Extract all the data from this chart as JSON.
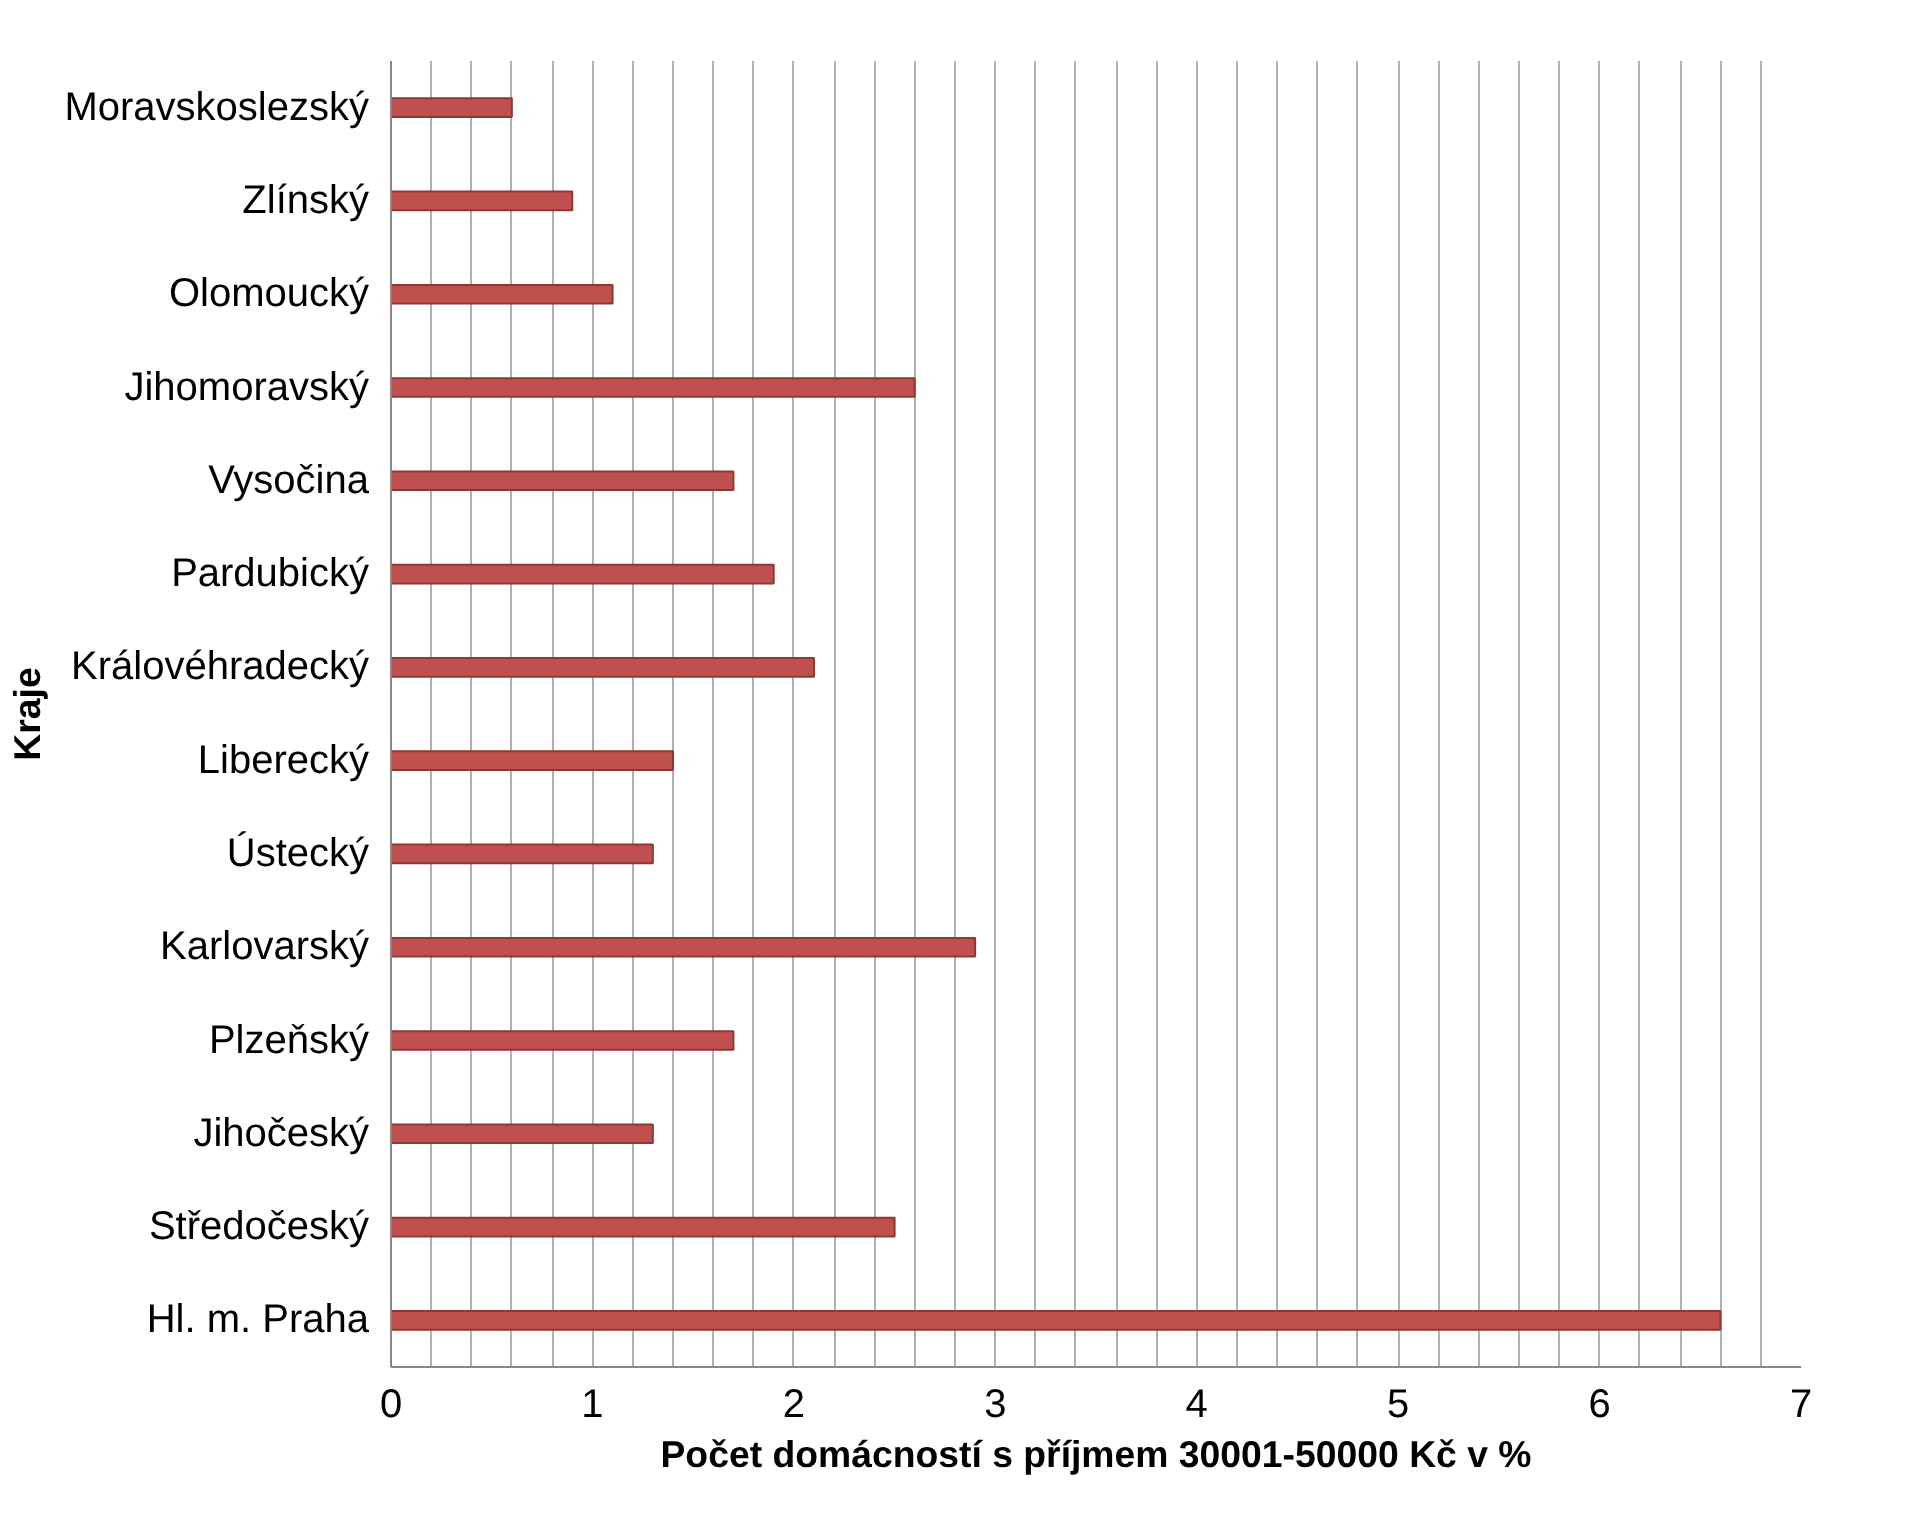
{
  "chart_data": {
    "type": "bar",
    "orientation": "horizontal",
    "xlabel": "Počet domácností s příjmem 30001-50000 Kč v %",
    "ylabel": "Kraje",
    "categories": [
      "Moravskoslezský",
      "Zlínský",
      "Olomoucký",
      "Jihomoravský",
      "Vysočina",
      "Pardubický",
      "Královéhradecký",
      "Liberecký",
      "Ústecký",
      "Karlovarský",
      "Plzeňský",
      "Jihočeský",
      "Středočeský",
      "Hl. m. Praha"
    ],
    "values": [
      0.6,
      0.9,
      1.1,
      2.6,
      1.7,
      1.9,
      2.1,
      1.4,
      1.3,
      2.9,
      1.7,
      1.3,
      2.5,
      6.6
    ],
    "color": "#c0504d",
    "xlim": [
      0,
      7
    ],
    "xticks": [
      0,
      {
        "value": 0.2,
        "label": null
      },
      {
        "value": 0.4,
        "label": null
      },
      {
        "value": 0.6,
        "label": null
      },
      {
        "value": 0.8,
        "label": null
      },
      1,
      {
        "value": 1.2,
        "label": null
      },
      {
        "value": 1.4,
        "label": null
      },
      {
        "value": 1.6,
        "label": null
      },
      {
        "value": 1.8,
        "label": null
      },
      2,
      {
        "value": 2.2,
        "label": null
      },
      {
        "value": 2.4,
        "label": null
      },
      {
        "value": 2.6,
        "label": null
      },
      {
        "value": 2.8,
        "label": null
      },
      3,
      {
        "value": 3.2,
        "label": null
      },
      {
        "value": 3.4,
        "label": null
      },
      {
        "value": 3.6,
        "label": null
      },
      {
        "value": 3.8,
        "label": null
      },
      4,
      {
        "value": 4.2,
        "label": null
      },
      {
        "value": 4.4,
        "label": null
      },
      {
        "value": 4.6,
        "label": null
      },
      {
        "value": 4.8,
        "label": null
      },
      5,
      {
        "value": 5.2,
        "label": null
      },
      {
        "value": 5.4,
        "label": null
      },
      {
        "value": 5.6,
        "label": null
      },
      {
        "value": 5.8,
        "label": null
      },
      6,
      {
        "value": 6.2,
        "label": null
      },
      {
        "value": 6.4,
        "label": null
      },
      {
        "value": 6.6,
        "label": null
      },
      {
        "value": 6.8,
        "label": null
      },
      7
    ],
    "grid": "x"
  }
}
